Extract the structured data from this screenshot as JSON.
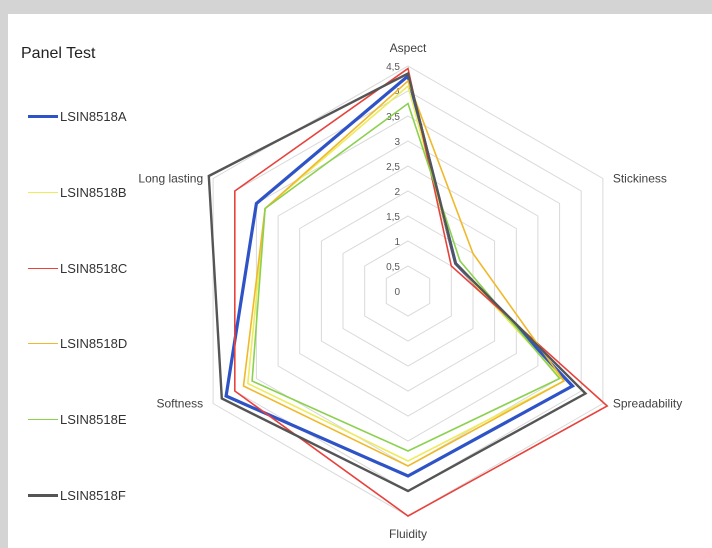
{
  "chart_data": {
    "type": "radar",
    "title": "Panel Test",
    "axes": [
      "Aspect",
      "Stickiness",
      "Spreadability",
      "Fluidity",
      "Softness",
      "Long lasting"
    ],
    "rlim": [
      0,
      4.5
    ],
    "ticks": [
      "0",
      "0,5",
      "1",
      "1,5",
      "2",
      "2,5",
      "3",
      "3,5",
      "4",
      "4,5"
    ],
    "grid": true,
    "legend_position": "left",
    "series": [
      {
        "name": "LSIN8518A",
        "color": "#2e53c6",
        "width": 3.2,
        "values": [
          4.3,
          1.1,
          3.8,
          3.7,
          4.2,
          3.5
        ]
      },
      {
        "name": "LSIN8518B",
        "color": "#ecec5c",
        "width": 1.6,
        "values": [
          4.1,
          1.1,
          3.6,
          3.4,
          3.7,
          3.3
        ]
      },
      {
        "name": "LSIN8518C",
        "color": "#e8423c",
        "width": 1.6,
        "values": [
          4.45,
          1.0,
          4.6,
          4.5,
          4.0,
          4.0
        ]
      },
      {
        "name": "LSIN8518D",
        "color": "#f0b82a",
        "width": 1.6,
        "values": [
          4.2,
          1.5,
          3.6,
          3.5,
          3.8,
          3.3
        ]
      },
      {
        "name": "LSIN8518E",
        "color": "#8bd14e",
        "width": 1.6,
        "values": [
          3.75,
          1.2,
          3.5,
          3.2,
          3.6,
          3.3
        ]
      },
      {
        "name": "LSIN8518F",
        "color": "#555555",
        "width": 2.4,
        "values": [
          4.35,
          1.1,
          4.1,
          4.0,
          4.3,
          4.6
        ]
      }
    ]
  }
}
